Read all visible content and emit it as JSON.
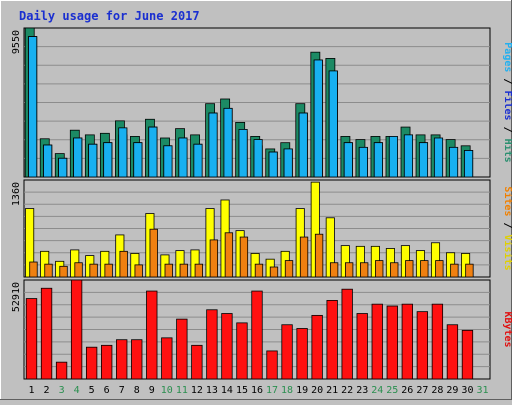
{
  "chart_data": {
    "type": "bar",
    "title": "Daily usage for June 2017",
    "categories": [
      "1",
      "2",
      "3",
      "4",
      "5",
      "6",
      "7",
      "8",
      "9",
      "10",
      "11",
      "12",
      "13",
      "14",
      "15",
      "16",
      "17",
      "18",
      "19",
      "20",
      "21",
      "22",
      "23",
      "24",
      "25",
      "26",
      "27",
      "28",
      "29",
      "30",
      "31"
    ],
    "weekend_days": [
      "3",
      "4",
      "10",
      "11",
      "17",
      "18",
      "24",
      "25",
      "31"
    ],
    "panels": [
      {
        "id": "hits",
        "max_label": "9550",
        "ymax": 9550,
        "axis_labels": [
          {
            "text": "Hits",
            "color": "#2a8f6f"
          },
          {
            "text": "Files",
            "color": "#1a2fd0"
          },
          {
            "text": "Pages",
            "color": "#22b0f0"
          }
        ],
        "series": [
          {
            "name": "Hits",
            "color": "#1c8a64",
            "values": [
              9550,
              2450,
              1500,
              3000,
              2700,
              2800,
              3600,
              2600,
              3700,
              2500,
              3100,
              2700,
              4700,
              5000,
              3500,
              2600,
              1800,
              2200,
              4700,
              8000,
              7600,
              2600,
              2400,
              2600,
              2600,
              3200,
              2700,
              2700,
              2400,
              2000,
              0
            ]
          },
          {
            "name": "Files",
            "color": "#1424c8",
            "values": [
              9000,
              2050,
              1200,
              2500,
              2100,
              2200,
              2700,
              2200,
              3200,
              2000,
              2500,
              2100,
              4100,
              4400,
              2900,
              2000,
              1600,
              1800,
              4100,
              7500,
              6800,
              2200,
              1900,
              2200,
              2100,
              2700,
              2200,
              2200,
              1900,
              1700,
              0
            ]
          },
          {
            "name": "Pages",
            "color": "#18b0f0",
            "values": [
              9000,
              2050,
              1200,
              2500,
              2100,
              2200,
              3150,
              2200,
              3200,
              2000,
              2500,
              2100,
              4100,
              4400,
              3050,
              2400,
              1600,
              1800,
              4100,
              7500,
              6800,
              2200,
              1900,
              2200,
              2600,
              2700,
              2200,
              2500,
              1900,
              1700,
              0
            ]
          }
        ]
      },
      {
        "id": "visits",
        "max_label": "1360",
        "ymax": 1360,
        "axis_labels": [
          {
            "text": "Visits",
            "color": "#e0d000"
          },
          {
            "text": "Sites",
            "color": "#f08000"
          }
        ],
        "series": [
          {
            "name": "Visits",
            "color": "#ffff00",
            "values": [
              960,
              360,
              220,
              380,
              300,
              360,
              590,
              330,
              890,
              310,
              370,
              380,
              960,
              1080,
              650,
              330,
              250,
              360,
              960,
              1330,
              830,
              440,
              430,
              430,
              400,
              440,
              370,
              480,
              340,
              330,
              0
            ]
          },
          {
            "name": "Sites",
            "color": "#f08010",
            "values": [
              210,
              180,
              150,
              200,
              180,
              180,
              360,
              170,
              670,
              180,
              180,
              180,
              520,
              620,
              560,
              180,
              140,
              230,
              560,
              600,
              200,
              200,
              200,
              230,
              200,
              230,
              230,
              230,
              180,
              180,
              0
            ]
          }
        ]
      },
      {
        "id": "kbytes",
        "max_label": "52910",
        "ymax": 52910,
        "axis_labels": [
          {
            "text": "KBytes",
            "color": "#e01010"
          }
        ],
        "series": [
          {
            "name": "KBytes",
            "color": "#ff1010",
            "values": [
              43000,
              48500,
              9000,
              53000,
              17000,
              18000,
              21000,
              21000,
              47000,
              22000,
              32000,
              18000,
              37000,
              35000,
              30000,
              47000,
              15000,
              29000,
              27000,
              34000,
              42000,
              48000,
              35000,
              40000,
              39000,
              40000,
              36000,
              40000,
              29000,
              26000,
              0
            ]
          }
        ]
      }
    ]
  }
}
